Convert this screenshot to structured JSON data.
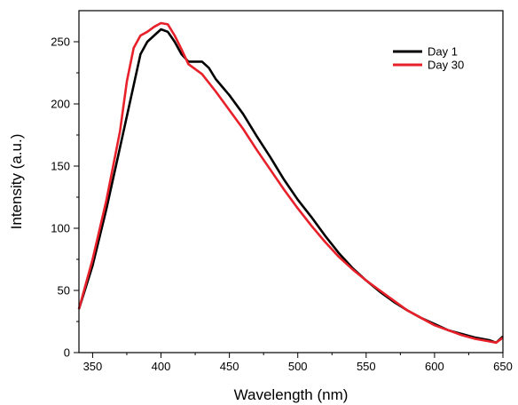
{
  "chart_data": {
    "type": "line",
    "xlabel": "Wavelength (nm)",
    "ylabel": "Intensity (a.u.)",
    "xlim": [
      340,
      650
    ],
    "ylim": [
      0,
      275
    ],
    "x_ticks": [
      350,
      400,
      450,
      500,
      550,
      600,
      650
    ],
    "y_ticks": [
      0,
      50,
      100,
      150,
      200,
      250
    ],
    "legend_position": "top-right",
    "series": [
      {
        "name": "Day 1",
        "color": "#000000",
        "points": [
          [
            340,
            35
          ],
          [
            350,
            70
          ],
          [
            360,
            115
          ],
          [
            370,
            165
          ],
          [
            380,
            215
          ],
          [
            385,
            240
          ],
          [
            390,
            250
          ],
          [
            395,
            255
          ],
          [
            400,
            260
          ],
          [
            405,
            258
          ],
          [
            410,
            250
          ],
          [
            415,
            240
          ],
          [
            420,
            234
          ],
          [
            425,
            234
          ],
          [
            430,
            234
          ],
          [
            435,
            229
          ],
          [
            440,
            220
          ],
          [
            450,
            207
          ],
          [
            460,
            192
          ],
          [
            470,
            174
          ],
          [
            480,
            157
          ],
          [
            490,
            139
          ],
          [
            500,
            123
          ],
          [
            510,
            109
          ],
          [
            520,
            94
          ],
          [
            530,
            80
          ],
          [
            540,
            68
          ],
          [
            550,
            58
          ],
          [
            560,
            49
          ],
          [
            570,
            41
          ],
          [
            580,
            34
          ],
          [
            590,
            28
          ],
          [
            600,
            23
          ],
          [
            610,
            18
          ],
          [
            620,
            15
          ],
          [
            630,
            12
          ],
          [
            640,
            10
          ],
          [
            645,
            8
          ],
          [
            650,
            13
          ]
        ]
      },
      {
        "name": "Day 30",
        "color": "#e8202a",
        "points": [
          [
            340,
            35
          ],
          [
            350,
            75
          ],
          [
            360,
            122
          ],
          [
            370,
            178
          ],
          [
            375,
            218
          ],
          [
            380,
            245
          ],
          [
            385,
            255
          ],
          [
            390,
            258
          ],
          [
            395,
            262
          ],
          [
            400,
            265
          ],
          [
            405,
            264
          ],
          [
            410,
            255
          ],
          [
            415,
            244
          ],
          [
            420,
            232
          ],
          [
            425,
            228
          ],
          [
            430,
            224
          ],
          [
            440,
            210
          ],
          [
            450,
            195
          ],
          [
            460,
            180
          ],
          [
            470,
            163
          ],
          [
            480,
            147
          ],
          [
            490,
            131
          ],
          [
            500,
            116
          ],
          [
            510,
            102
          ],
          [
            520,
            89
          ],
          [
            530,
            77
          ],
          [
            540,
            67
          ],
          [
            550,
            58
          ],
          [
            560,
            50
          ],
          [
            570,
            42
          ],
          [
            580,
            34
          ],
          [
            590,
            28
          ],
          [
            600,
            22
          ],
          [
            610,
            18
          ],
          [
            620,
            14
          ],
          [
            630,
            11
          ],
          [
            640,
            9
          ],
          [
            645,
            8
          ],
          [
            650,
            12
          ]
        ]
      }
    ]
  }
}
